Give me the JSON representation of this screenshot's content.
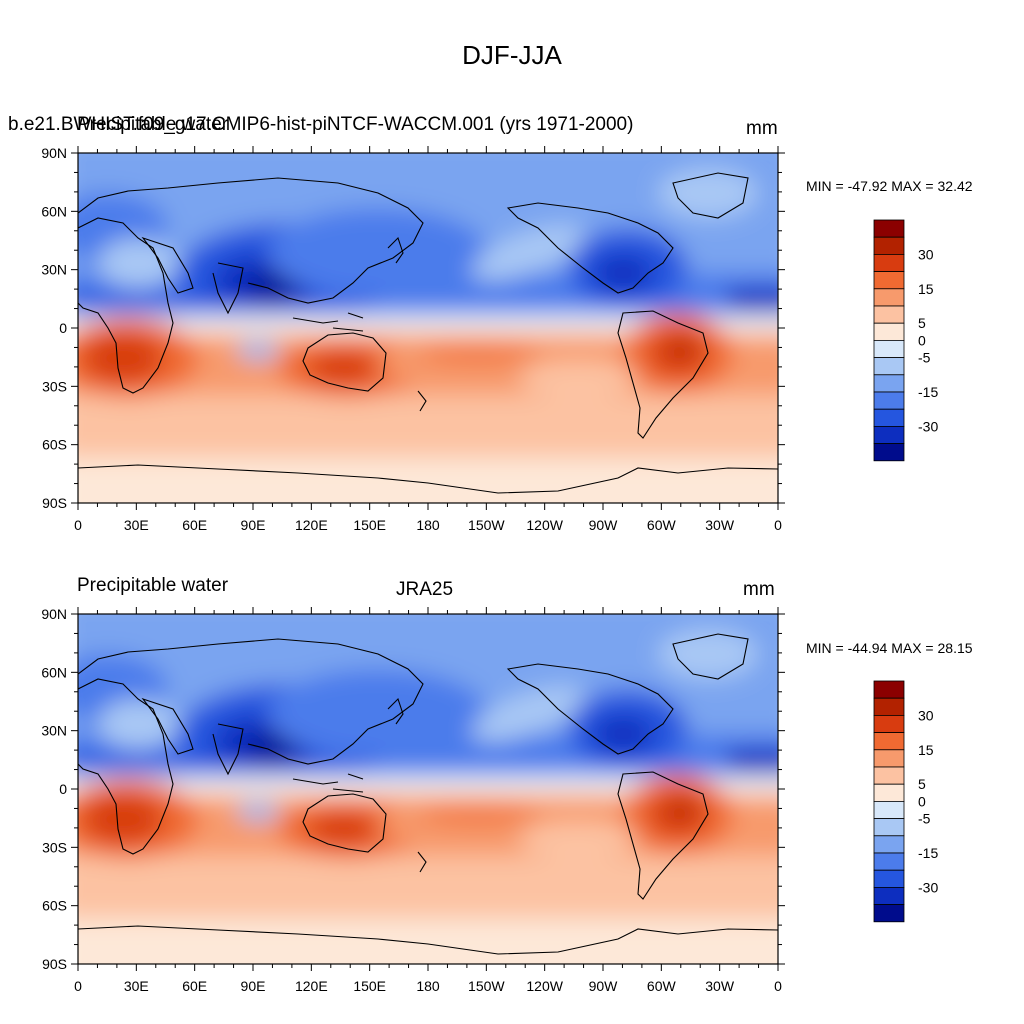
{
  "figure": {
    "title": "DJF-JJA"
  },
  "panels": [
    {
      "left_label": "Precipitable water",
      "center_label": "b.e21.BWHIST.f09_g17.CMIP6-hist-piNTCF-WACCM.001 (yrs 1971-2000)",
      "units": "mm",
      "stats": "MIN = -47.92 MAX =  32.42",
      "land_mask": "model"
    },
    {
      "left_label": "Precipitable water",
      "center_label": "JRA25",
      "units": "mm",
      "stats": "MIN = -44.94 MAX =  28.15",
      "land_mask": "reanalysis"
    }
  ],
  "axes": {
    "x_tick_labels": [
      "0",
      "30E",
      "60E",
      "90E",
      "120E",
      "150E",
      "180",
      "150W",
      "120W",
      "90W",
      "60W",
      "30W",
      "0"
    ],
    "y_tick_labels": [
      "90N",
      "60N",
      "30N",
      "0",
      "30S",
      "60S",
      "90S"
    ]
  },
  "colorbar": {
    "labels": [
      "30",
      "15",
      "5",
      "0",
      "-5",
      "-15",
      "-30"
    ],
    "colors": [
      "#8b0000",
      "#b22200",
      "#d83c10",
      "#f06a32",
      "#f79a6c",
      "#fcc2a2",
      "#fde8d8",
      "#d8e8fa",
      "#a9c8f4",
      "#7aa4f0",
      "#4c7ceb",
      "#2556df",
      "#0d2ebf",
      "#000c8c"
    ]
  },
  "chart_data": {
    "type": "heatmap",
    "title": "DJF-JJA",
    "series": [
      {
        "name": "b.e21.BWHIST.f09_g17.CMIP6-hist-piNTCF-WACCM.001 (yrs 1971-2000)",
        "min": -47.92,
        "max": 32.42
      },
      {
        "name": "JRA25",
        "min": -44.94,
        "max": 28.15
      }
    ],
    "xlim": [
      0,
      360
    ],
    "ylim": [
      -90,
      90
    ],
    "contour_levels": [
      -35,
      -30,
      -25,
      -20,
      -15,
      -10,
      -5,
      0,
      5,
      10,
      15,
      20,
      25,
      30,
      35
    ],
    "units": "mm"
  }
}
